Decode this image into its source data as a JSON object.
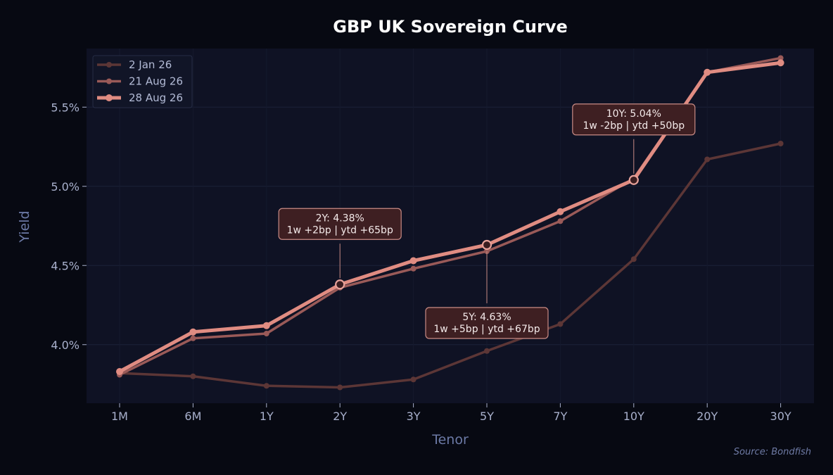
{
  "chart_data": {
    "type": "line",
    "title": "GBP UK Sovereign Curve",
    "xlabel": "Tenor",
    "ylabel": "Yield",
    "categories": [
      "1M",
      "6M",
      "1Y",
      "2Y",
      "3Y",
      "5Y",
      "7Y",
      "10Y",
      "20Y",
      "30Y"
    ],
    "ylim": [
      3.63,
      5.87
    ],
    "yticks": [
      4.0,
      4.5,
      5.0,
      5.5
    ],
    "ytick_labels": [
      "4.0%",
      "4.5%",
      "5.0%",
      "5.5%"
    ],
    "grid": true,
    "legend_position": "top-left",
    "series": [
      {
        "name": "2 Jan 26",
        "color": "#5c3636",
        "values": [
          3.82,
          3.8,
          3.74,
          3.73,
          3.78,
          3.96,
          4.13,
          4.54,
          5.17,
          5.27
        ]
      },
      {
        "name": "21 Aug 26",
        "color": "#9a5a58",
        "values": [
          3.81,
          4.04,
          4.07,
          4.36,
          4.48,
          4.59,
          4.78,
          5.05,
          5.72,
          5.81
        ]
      },
      {
        "name": "28 Aug 26",
        "color": "#e08c82",
        "values": [
          3.83,
          4.08,
          4.12,
          4.38,
          4.53,
          4.63,
          4.84,
          5.04,
          5.72,
          5.78
        ]
      }
    ],
    "annotations": [
      {
        "tenor": "2Y",
        "line1": "2Y: 4.38%",
        "line2": "1w +2bp | ytd +65bp",
        "placement": "above"
      },
      {
        "tenor": "5Y",
        "line1": "5Y: 4.63%",
        "line2": "1w +5bp | ytd +67bp",
        "placement": "below"
      },
      {
        "tenor": "10Y",
        "line1": "10Y: 5.04%",
        "line2": "1w -2bp | ytd +50bp",
        "placement": "above"
      }
    ],
    "source": "Source: Bondfish"
  }
}
